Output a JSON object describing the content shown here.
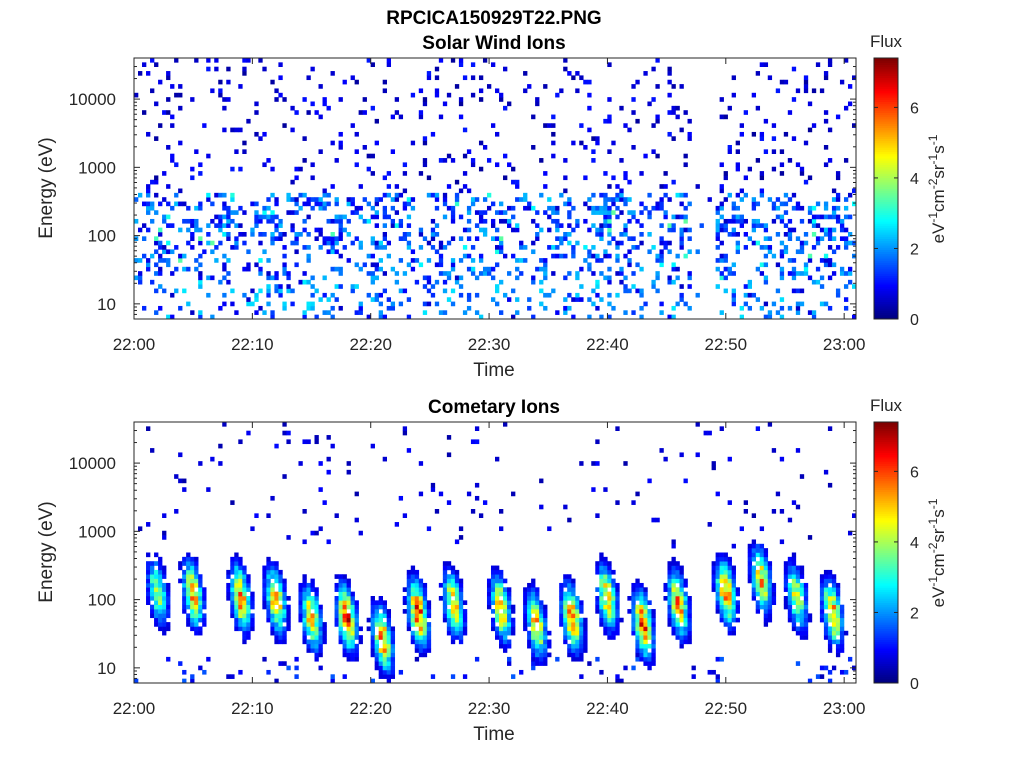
{
  "figure_title": "RPCICA150929T22.PNG",
  "chart_data": [
    {
      "type": "heatmap",
      "title": "Solar Wind Ions",
      "xlabel": "Time",
      "ylabel": "Energy (eV)",
      "x_ticks": [
        "22:00",
        "22:10",
        "22:20",
        "22:30",
        "22:40",
        "22:50",
        "23:00"
      ],
      "x_range": [
        "22:00",
        "23:01"
      ],
      "y_scale": "log",
      "y_ticks": [
        "10",
        "100",
        "1000",
        "10000"
      ],
      "y_range": [
        6,
        40000
      ],
      "colorbar": {
        "label": "Flux",
        "units_label": "eV-1cm-2sr-1s-1",
        "ticks": [
          "0",
          "2",
          "4",
          "6"
        ],
        "range": [
          0,
          7.4
        ],
        "colormap": "jet"
      },
      "features": {
        "data_gap": [
          "22:47",
          "22:49"
        ],
        "dense_band_energy_eV": [
          30,
          300
        ],
        "typical_flux": [
          0.5,
          3
        ],
        "note_values": "scattered low-flux counts up to ~30000 eV"
      }
    },
    {
      "type": "heatmap",
      "title": "Cometary Ions",
      "xlabel": "Time",
      "ylabel": "Energy (eV)",
      "x_ticks": [
        "22:00",
        "22:10",
        "22:20",
        "22:30",
        "22:40",
        "22:50",
        "23:00"
      ],
      "x_range": [
        "22:00",
        "23:01"
      ],
      "y_scale": "log",
      "y_ticks": [
        "10",
        "100",
        "1000",
        "10000"
      ],
      "y_range": [
        6,
        40000
      ],
      "colorbar": {
        "label": "Flux",
        "units_label": "eV-1cm-2sr-1s-1",
        "ticks": [
          "0",
          "2",
          "4",
          "6"
        ],
        "range": [
          0,
          7.4
        ],
        "colormap": "jet"
      },
      "bursts": [
        {
          "t": "22:02",
          "peak_energy_eV": 120,
          "peak_flux": 4.0
        },
        {
          "t": "22:05",
          "peak_energy_eV": 110,
          "peak_flux": 5.2
        },
        {
          "t": "22:09",
          "peak_energy_eV": 100,
          "peak_flux": 5.6
        },
        {
          "t": "22:12",
          "peak_energy_eV": 90,
          "peak_flux": 5.3
        },
        {
          "t": "22:15",
          "peak_energy_eV": 50,
          "peak_flux": 5.0
        },
        {
          "t": "22:18",
          "peak_energy_eV": 50,
          "peak_flux": 6.0
        },
        {
          "t": "22:21",
          "peak_energy_eV": 25,
          "peak_flux": 5.5
        },
        {
          "t": "22:24",
          "peak_energy_eV": 60,
          "peak_flux": 6.2
        },
        {
          "t": "22:27",
          "peak_energy_eV": 80,
          "peak_flux": 5.0
        },
        {
          "t": "22:31",
          "peak_energy_eV": 70,
          "peak_flux": 5.2
        },
        {
          "t": "22:34",
          "peak_energy_eV": 40,
          "peak_flux": 5.0
        },
        {
          "t": "22:37",
          "peak_energy_eV": 50,
          "peak_flux": 6.0
        },
        {
          "t": "22:40",
          "peak_energy_eV": 100,
          "peak_flux": 5.0
        },
        {
          "t": "22:43",
          "peak_energy_eV": 40,
          "peak_flux": 6.0
        },
        {
          "t": "22:46",
          "peak_energy_eV": 80,
          "peak_flux": 5.3
        },
        {
          "t": "22:50",
          "peak_energy_eV": 120,
          "peak_flux": 5.5
        },
        {
          "t": "22:53",
          "peak_energy_eV": 180,
          "peak_flux": 5.0
        },
        {
          "t": "22:56",
          "peak_energy_eV": 100,
          "peak_flux": 4.5
        },
        {
          "t": "22:59",
          "peak_energy_eV": 60,
          "peak_flux": 5.3
        }
      ]
    }
  ]
}
